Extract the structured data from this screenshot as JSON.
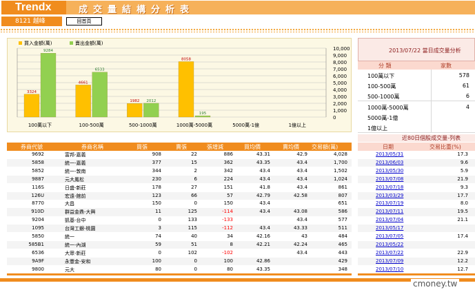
{
  "header": {
    "brand": "Trendx",
    "title": "成交量結構分析表"
  },
  "stock": {
    "name": "8121 越峰",
    "button_label": "回首頁"
  },
  "colors": {
    "accent": "#f08c1e",
    "buy_bar": "#ffc000",
    "sell_bar": "#92d050",
    "link": "#0000cc",
    "negative": "#ff0000"
  },
  "chart_data": {
    "type": "bar",
    "categories": [
      "100萬以下",
      "100-500萬",
      "500-1000萬",
      "1000萬-5000萬",
      "5000萬-1億",
      "1億以上"
    ],
    "series": [
      {
        "name": "買入金額(萬)",
        "values": [
          3324,
          4661,
          1982,
          8058,
          0,
          0
        ]
      },
      {
        "name": "賣出金額(萬)",
        "values": [
          9284,
          6533,
          2012,
          195,
          0,
          0
        ]
      }
    ],
    "data_labels": {
      "buy": [
        "3324",
        "4661",
        "1982",
        "8058",
        "",
        ""
      ],
      "sell": [
        "9284",
        "6533",
        "2012",
        "195",
        "",
        ""
      ]
    },
    "yticks": [
      "10,000",
      "9,000",
      "8,000",
      "7,000",
      "6,000",
      "5,000",
      "4,000",
      "3,000",
      "2,000",
      "1,000",
      "0"
    ],
    "ylim": [
      0,
      10000
    ],
    "legend": "top-left",
    "grid": true
  },
  "summary": {
    "title": "2013/07/22 當日成交量分析",
    "headers": [
      "分 類",
      "家數"
    ],
    "rows": [
      {
        "label": "100萬以下",
        "count": "578"
      },
      {
        "label": "100-500萬",
        "count": "61"
      },
      {
        "label": "500-1000萬",
        "count": "6"
      },
      {
        "label": "1000萬-5000萬",
        "count": "4"
      },
      {
        "label": "5000萬-1億",
        "count": ""
      },
      {
        "label": "1億以上",
        "count": ""
      }
    ]
  },
  "broker_table": {
    "headers": [
      "券商代號",
      "券商名稱",
      "買張",
      "賣張",
      "張增減",
      "買均價",
      "賣均價",
      "交易額(萬)"
    ],
    "rows": [
      [
        "9692",
        "富邦-嘉義",
        "908",
        "22",
        "886",
        "43.31",
        "42.9",
        "4,028"
      ],
      [
        "5858",
        "統一-嘉義",
        "377",
        "15",
        "362",
        "43.35",
        "43.4",
        "1,700"
      ],
      [
        "5852",
        "統一-敦南",
        "344",
        "2",
        "342",
        "43.4",
        "43.4",
        "1,502"
      ],
      [
        "9887",
        "元大鳳松",
        "230",
        "6",
        "224",
        "43.4",
        "43.4",
        "1,024"
      ],
      [
        "116S",
        "日盛-新莊",
        "178",
        "27",
        "151",
        "41.8",
        "43.4",
        "861"
      ],
      [
        "126U",
        "宏遠-館前",
        "123",
        "66",
        "57",
        "42.79",
        "42.58",
        "807"
      ],
      [
        "8770",
        "大昌",
        "150",
        "0",
        "150",
        "43.4",
        "",
        "651"
      ],
      [
        "910D",
        "群益金鼎-大興",
        "11",
        "125",
        "-114",
        "43.4",
        "43.08",
        "586"
      ],
      [
        "9204",
        "凱基-台中",
        "0",
        "133",
        "-133",
        "",
        "43.4",
        "577"
      ],
      [
        "1095",
        "台灣工銀-桃園",
        "3",
        "115",
        "-112",
        "43.4",
        "43.33",
        "511"
      ],
      [
        "5850",
        "統一",
        "74",
        "40",
        "34",
        "42.16",
        "43",
        "484"
      ],
      [
        "585B1",
        "統一-內湖",
        "59",
        "51",
        "8",
        "42.21",
        "42.24",
        "465"
      ],
      [
        "6536",
        "大眾-新莊",
        "0",
        "102",
        "-102",
        "",
        "43.4",
        "443"
      ],
      [
        "9A9F",
        "永豐金-安和",
        "100",
        "0",
        "100",
        "42.86",
        "",
        "429"
      ],
      [
        "9800",
        "元大",
        "80",
        "0",
        "80",
        "43.35",
        "",
        "348"
      ]
    ]
  },
  "history": {
    "title": "近80日個股成交量-列表",
    "headers": [
      "日期",
      "交易比重(%)"
    ],
    "rows": [
      [
        "2013/05/31",
        "17.3"
      ],
      [
        "2013/06/03",
        "9.6"
      ],
      [
        "2013/05/30",
        "5.9"
      ],
      [
        "2013/07/08",
        "21.9"
      ],
      [
        "2013/07/18",
        "9.3"
      ],
      [
        "2013/03/29",
        "17.7"
      ],
      [
        "2013/07/19",
        "8.0"
      ],
      [
        "2013/07/11",
        "19.5"
      ],
      [
        "2013/07/04",
        "21.1"
      ],
      [
        "2013/05/17",
        ""
      ],
      [
        "2013/07/05",
        "17.4"
      ],
      [
        "2013/05/22",
        ""
      ],
      [
        "2013/07/22",
        "22.9"
      ],
      [
        "2013/07/09",
        "12.2"
      ],
      [
        "2013/07/10",
        "12.7"
      ]
    ]
  },
  "watermark": "cmoney.tw"
}
